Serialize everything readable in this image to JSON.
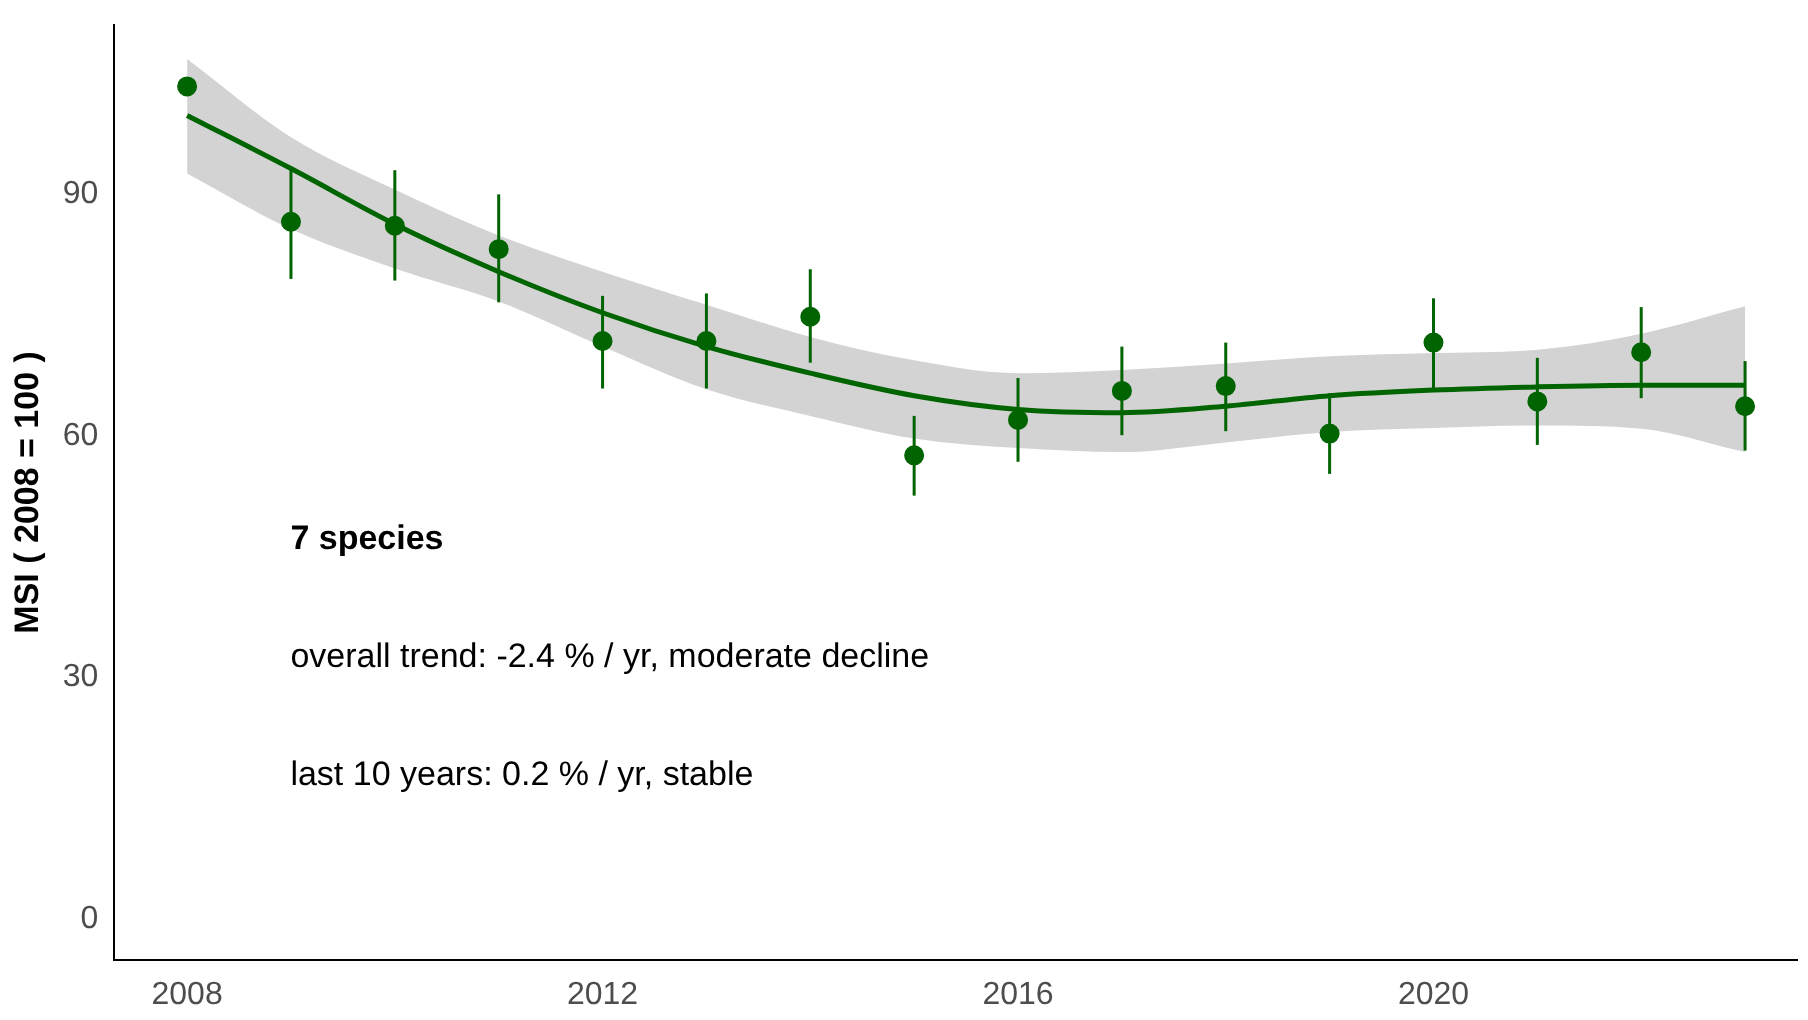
{
  "chart_data": {
    "type": "scatter",
    "ylabel": "MSI ( 2008 = 100 )",
    "annotations": [
      "7 species",
      "overall trend: -2.4 % / yr, moderate decline",
      "last 10 years: 0.2 % / yr, stable"
    ],
    "xlim": [
      2007.3,
      2023.5
    ],
    "xticks": [
      2008,
      2012,
      2016,
      2020
    ],
    "ylim": [
      -5,
      111
    ],
    "yticks": [
      0,
      30,
      60,
      90
    ],
    "grid": false,
    "legend": false,
    "series": [
      {
        "type": "line",
        "marker": "none",
        "color": "#006400",
        "x": [
          2008,
          2009,
          2010,
          2011,
          2012,
          2013,
          2014,
          2015,
          2016,
          2017,
          2018,
          2019,
          2020,
          2021,
          2022,
          2023
        ],
        "values": [
          99.8,
          93.2,
          86.3,
          80.4,
          75.3,
          71.1,
          67.8,
          65.0,
          63.3,
          62.9,
          63.7,
          65.0,
          65.7,
          66.1,
          66.3,
          66.3
        ],
        "lower": [
          92.6,
          85.7,
          80.8,
          76.7,
          71.1,
          65.8,
          62.5,
          59.7,
          58.5,
          58.0,
          59.2,
          60.5,
          61.0,
          61.3,
          60.9,
          58.0
        ],
        "upper": [
          106.8,
          97.1,
          90.6,
          84.9,
          80.4,
          76.3,
          72.3,
          69.4,
          67.8,
          68.2,
          69.0,
          69.9,
          70.3,
          70.7,
          72.7,
          76.1
        ]
      },
      {
        "marker": "circle",
        "color": "#006400",
        "x": [
          2008,
          2009,
          2010,
          2011,
          2012,
          2013,
          2014,
          2015,
          2016,
          2017,
          2018,
          2019,
          2020,
          2021,
          2022,
          2023
        ],
        "values": [
          103.4,
          86.6,
          86.1,
          83.2,
          71.8,
          71.8,
          74.8,
          57.6,
          62.0,
          65.6,
          66.2,
          60.3,
          71.6,
          64.3,
          70.4,
          63.7
        ],
        "errors": [
          null,
          [
            79.5,
            93.4
          ],
          [
            79.3,
            93.0
          ],
          [
            76.6,
            90.0
          ],
          [
            65.9,
            77.4
          ],
          [
            65.9,
            77.7
          ],
          [
            69.1,
            80.7
          ],
          [
            52.6,
            62.5
          ],
          [
            56.8,
            67.2
          ],
          [
            60.1,
            71.1
          ],
          [
            60.6,
            71.6
          ],
          [
            55.3,
            65.3
          ],
          [
            65.8,
            77.1
          ],
          [
            58.9,
            69.7
          ],
          [
            64.7,
            76.0
          ],
          [
            58.2,
            69.3
          ]
        ]
      }
    ]
  }
}
